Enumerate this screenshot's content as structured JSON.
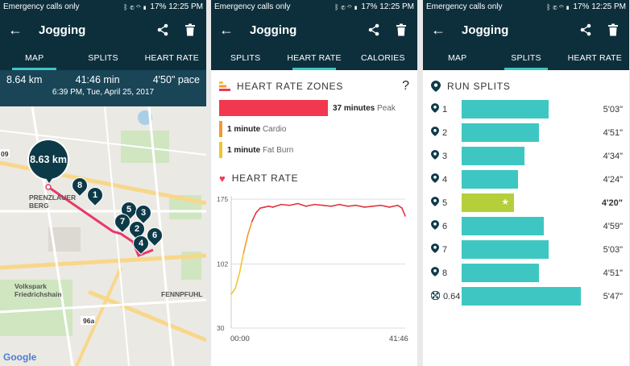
{
  "status": {
    "carrier": "Emergency calls only",
    "battery": "17%",
    "time": "12:25 PM",
    "icons": "ᛒ ✆ ⌔ ▮"
  },
  "activity_title": "Jogging",
  "icons": {
    "back": "arrow-left-icon",
    "share": "share-icon",
    "delete": "trash-icon"
  },
  "panel1": {
    "tabs": [
      "MAP",
      "SPLITS",
      "HEART RATE"
    ],
    "active_tab": 0,
    "distance": "8.64 km",
    "duration": "41:46 min",
    "pace": "4'50\" pace",
    "datetime": "6:39 PM, Tue, April 25, 2017",
    "big_marker": "8.63 km",
    "markers": [
      "8",
      "1",
      "5",
      "3",
      "7",
      "2",
      "4",
      "6"
    ],
    "map_labels": [
      "PRENZLAUER BERG",
      "Volkspark Friedrichshain",
      "FENNPFUHL",
      "96a",
      "09"
    ],
    "google": "Google"
  },
  "panel2": {
    "tabs": [
      "SPLITS",
      "HEART RATE",
      "CALORIES"
    ],
    "active_tab": 1,
    "zones_title": "HEART RATE ZONES",
    "help": "?",
    "zones": [
      {
        "minutes": "37 minutes",
        "zone": "Peak",
        "color": "#f2384f",
        "fraction": 1.0
      },
      {
        "minutes": "1 minute",
        "zone": "Cardio",
        "color": "#f39a2d",
        "fraction": 0.03
      },
      {
        "minutes": "1 minute",
        "zone": "Fat Burn",
        "color": "#f3c430",
        "fraction": 0.03
      }
    ],
    "hr_title": "HEART RATE",
    "chart_data": {
      "type": "line",
      "y_ticks": [
        "175",
        "102",
        "30"
      ],
      "x_ticks": [
        "00:00",
        "41:46"
      ],
      "ylim": [
        30,
        175
      ],
      "x": [
        0,
        1,
        2,
        3,
        4,
        5,
        6,
        7,
        8,
        9,
        10,
        12,
        14,
        16,
        18,
        20,
        22,
        24,
        26,
        28,
        30,
        32,
        34,
        36,
        38,
        40,
        41,
        41.8
      ],
      "y": [
        68,
        75,
        92,
        115,
        135,
        150,
        160,
        165,
        166,
        167,
        166,
        169,
        168,
        170,
        167,
        169,
        168,
        167,
        169,
        167,
        168,
        166,
        167,
        168,
        166,
        168,
        165,
        156
      ]
    }
  },
  "panel3": {
    "tabs": [
      "MAP",
      "SPLITS",
      "HEART RATE"
    ],
    "active_tab": 1,
    "splits_title": "RUN SPLITS",
    "splits": [
      {
        "label": "1",
        "pace": "5'03\"",
        "fraction": 0.73,
        "best": false
      },
      {
        "label": "2",
        "pace": "4'51\"",
        "fraction": 0.65,
        "best": false
      },
      {
        "label": "3",
        "pace": "4'34\"",
        "fraction": 0.53,
        "best": false
      },
      {
        "label": "4",
        "pace": "4'24\"",
        "fraction": 0.47,
        "best": false
      },
      {
        "label": "5",
        "pace": "4'20\"",
        "fraction": 0.44,
        "best": true
      },
      {
        "label": "6",
        "pace": "4'59\"",
        "fraction": 0.69,
        "best": false
      },
      {
        "label": "7",
        "pace": "5'03\"",
        "fraction": 0.73,
        "best": false
      },
      {
        "label": "8",
        "pace": "4'51\"",
        "fraction": 0.65,
        "best": false
      },
      {
        "label": "0.64",
        "pace": "5'47\"",
        "fraction": 1.0,
        "best": false
      }
    ]
  }
}
